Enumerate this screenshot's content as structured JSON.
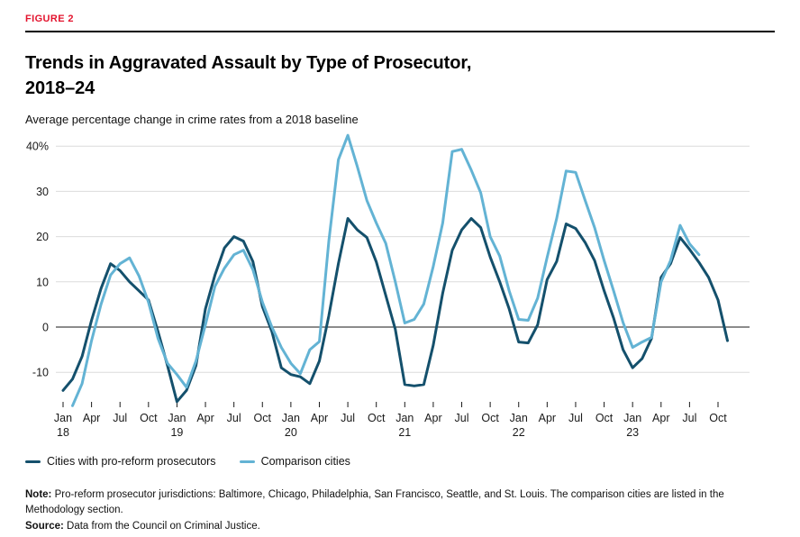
{
  "figure_label": "FIGURE 2",
  "title": "Trends in Aggravated Assault by Type of Prosecutor, 2018–24",
  "subtitle": "Average percentage change in crime rates from a 2018 baseline",
  "legend": [
    {
      "label": "Cities with pro-reform prosecutors",
      "color": "#14506c"
    },
    {
      "label": "Comparison cities",
      "color": "#63b3d4"
    }
  ],
  "note_label": "Note:",
  "note_text": "Pro-reform prosecutor jurisdictions: Baltimore, Chicago, Philadelphia, San Francisco, Seattle, and St. Louis. The comparison cities are listed in the Methodology section.",
  "source_label": "Source:",
  "source_text": "Data from the Council on Criminal Justice.",
  "colors": {
    "accent_red": "#e3142e",
    "dark_series": "#14506c",
    "light_series": "#63b3d4",
    "grid": "#dcdcdc",
    "zero_line": "#1a1a1a",
    "axis_text": "#1a1a1a"
  },
  "chart_data": {
    "type": "line",
    "title": "Trends in Aggravated Assault by Type of Prosecutor, 2018–24",
    "ylabel": "Average percentage change in crime rates from a 2018 baseline",
    "x_unit": "month",
    "x_start": "2018-01",
    "x_end": "2023-11",
    "grid": true,
    "legend_position": "bottom-left",
    "ylim": [
      -20,
      44
    ],
    "y_ticks": [
      {
        "value": 40,
        "label": "40%"
      },
      {
        "value": 30,
        "label": "30"
      },
      {
        "value": 20,
        "label": "20"
      },
      {
        "value": 10,
        "label": "10"
      },
      {
        "value": 0,
        "label": "0"
      },
      {
        "value": -10,
        "label": "-10"
      }
    ],
    "x_ticks": [
      {
        "i": 0,
        "month": "Jan",
        "year": "18"
      },
      {
        "i": 3,
        "month": "Apr"
      },
      {
        "i": 6,
        "month": "Jul"
      },
      {
        "i": 9,
        "month": "Oct"
      },
      {
        "i": 12,
        "month": "Jan",
        "year": "19"
      },
      {
        "i": 15,
        "month": "Apr"
      },
      {
        "i": 18,
        "month": "Jul"
      },
      {
        "i": 21,
        "month": "Oct"
      },
      {
        "i": 24,
        "month": "Jan",
        "year": "20"
      },
      {
        "i": 27,
        "month": "Apr"
      },
      {
        "i": 30,
        "month": "Jul"
      },
      {
        "i": 33,
        "month": "Oct"
      },
      {
        "i": 36,
        "month": "Jan",
        "year": "21"
      },
      {
        "i": 39,
        "month": "Apr"
      },
      {
        "i": 42,
        "month": "Jul"
      },
      {
        "i": 45,
        "month": "Oct"
      },
      {
        "i": 48,
        "month": "Jan",
        "year": "22"
      },
      {
        "i": 51,
        "month": "Apr"
      },
      {
        "i": 54,
        "month": "Jul"
      },
      {
        "i": 57,
        "month": "Oct"
      },
      {
        "i": 60,
        "month": "Jan",
        "year": "23"
      },
      {
        "i": 63,
        "month": "Apr"
      },
      {
        "i": 66,
        "month": "Jul"
      },
      {
        "i": 69,
        "month": "Oct"
      }
    ],
    "series": [
      {
        "name": "Cities with pro-reform prosecutors",
        "color": "#14506c",
        "values": [
          -14,
          -11.5,
          -6.5,
          1.5,
          8.5,
          14,
          12.5,
          10,
          8,
          6,
          -1,
          -8.5,
          -16.5,
          -14,
          -8.5,
          4,
          11.5,
          17.5,
          20,
          19,
          14.5,
          4.5,
          -1,
          -9,
          -10.5,
          -11,
          -12.5,
          -7.5,
          2.5,
          14,
          24,
          21.5,
          19.8,
          14.4,
          7,
          -0.5,
          -12.7,
          -13,
          -12.7,
          -4,
          7.5,
          17,
          21.5,
          24,
          22,
          15.5,
          10,
          4,
          -3.3,
          -3.5,
          0.5,
          10.5,
          14.5,
          22.8,
          21.8,
          18.7,
          14.7,
          8,
          2,
          -5,
          -9,
          -7,
          -2.5,
          11,
          14,
          19.8,
          17.2,
          14.3,
          11,
          6,
          -3
        ]
      },
      {
        "name": "Comparison cities",
        "color": "#63b3d4",
        "values": [
          null,
          -17.4,
          -12.5,
          -3,
          5,
          11.5,
          14,
          15.3,
          11.3,
          5.5,
          -2.5,
          -8,
          -10.5,
          -13.3,
          -7.5,
          0.5,
          9,
          13,
          16,
          17,
          12.7,
          5.5,
          0,
          -4.5,
          -8,
          -10.3,
          -5,
          -3.2,
          19,
          37,
          42.4,
          35.5,
          28,
          23,
          18.5,
          10,
          0.9,
          1.7,
          5.1,
          13.4,
          23,
          38.8,
          39.3,
          34.7,
          29.7,
          20,
          15.7,
          8,
          1.7,
          1.5,
          6.4,
          15.4,
          24,
          34.5,
          34.2,
          28,
          22,
          14.7,
          8,
          1,
          -4.5,
          -3.3,
          -2.3,
          10,
          14.7,
          22.5,
          18.4,
          16
        ]
      }
    ]
  }
}
